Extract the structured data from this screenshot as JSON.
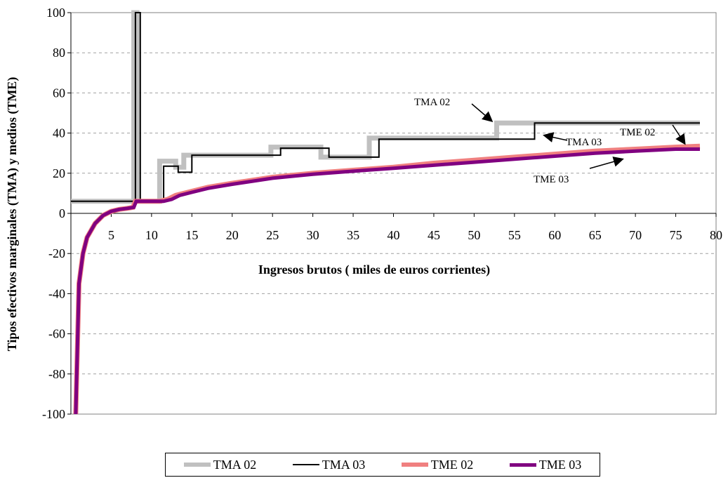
{
  "chart_data": {
    "type": "line",
    "xlabel": "Ingresos brutos ( miles de euros corrientes)",
    "ylabel": "Tipos efectivos marginales (TMA) y medios (TME)",
    "xlim": [
      0,
      80
    ],
    "ylim": [
      -100,
      100
    ],
    "x_ticks": [
      5,
      10,
      15,
      20,
      25,
      30,
      35,
      40,
      45,
      50,
      55,
      60,
      65,
      70,
      75,
      80
    ],
    "y_ticks": [
      100,
      80,
      60,
      40,
      20,
      0,
      -20,
      -40,
      -60,
      -80,
      -100
    ],
    "grid": "horizontal dashed",
    "legend_position": "bottom",
    "series": [
      {
        "name": "TMA 02",
        "color": "#c0c0c0",
        "width": 7,
        "points": [
          [
            0,
            6
          ],
          [
            7.8,
            6
          ],
          [
            7.8,
            100
          ],
          [
            8.2,
            100
          ],
          [
            8.2,
            6
          ],
          [
            11,
            6
          ],
          [
            11,
            26
          ],
          [
            13,
            26
          ],
          [
            13,
            23
          ],
          [
            14,
            23
          ],
          [
            14,
            29
          ],
          [
            24.8,
            29
          ],
          [
            24.8,
            33
          ],
          [
            31,
            33
          ],
          [
            31,
            28
          ],
          [
            37,
            28
          ],
          [
            37,
            37.5
          ],
          [
            52.8,
            37.5
          ],
          [
            52.8,
            45
          ],
          [
            78,
            45
          ]
        ]
      },
      {
        "name": "TMA 03",
        "color": "#000000",
        "width": 2,
        "points": [
          [
            0,
            6
          ],
          [
            8,
            6
          ],
          [
            8,
            100
          ],
          [
            8.6,
            100
          ],
          [
            8.6,
            6
          ],
          [
            11.5,
            6
          ],
          [
            11.5,
            23.5
          ],
          [
            13.3,
            23.5
          ],
          [
            13.3,
            20.5
          ],
          [
            15,
            20.5
          ],
          [
            15,
            29
          ],
          [
            26,
            29
          ],
          [
            26,
            32.5
          ],
          [
            32,
            32.5
          ],
          [
            32,
            28
          ],
          [
            38.2,
            28
          ],
          [
            38.2,
            37
          ],
          [
            57.5,
            37
          ],
          [
            57.5,
            45
          ],
          [
            78,
            45
          ]
        ]
      },
      {
        "name": "TME 02",
        "color": "#f08080",
        "width": 7,
        "points": [
          [
            0.6,
            -100
          ],
          [
            1,
            -35
          ],
          [
            1.5,
            -20
          ],
          [
            2,
            -12
          ],
          [
            3,
            -5
          ],
          [
            4,
            -1
          ],
          [
            5,
            1
          ],
          [
            6,
            2
          ],
          [
            7,
            2.5
          ],
          [
            7.7,
            3
          ],
          [
            8,
            6
          ],
          [
            11,
            6
          ],
          [
            12,
            7
          ],
          [
            13,
            9
          ],
          [
            15,
            11
          ],
          [
            17,
            13
          ],
          [
            20,
            15
          ],
          [
            25,
            18
          ],
          [
            30,
            20
          ],
          [
            35,
            21.5
          ],
          [
            40,
            23
          ],
          [
            45,
            25
          ],
          [
            50,
            26.5
          ],
          [
            55,
            28
          ],
          [
            60,
            29.5
          ],
          [
            65,
            31
          ],
          [
            70,
            32
          ],
          [
            75,
            33
          ],
          [
            78,
            33.5
          ]
        ]
      },
      {
        "name": "TME 03",
        "color": "#800080",
        "width": 5,
        "points": [
          [
            0.6,
            -100
          ],
          [
            1,
            -35
          ],
          [
            1.5,
            -20
          ],
          [
            2,
            -12
          ],
          [
            3,
            -5
          ],
          [
            4,
            -1
          ],
          [
            5,
            1
          ],
          [
            6,
            2
          ],
          [
            7,
            2.5
          ],
          [
            7.8,
            3
          ],
          [
            8.1,
            6
          ],
          [
            11.5,
            6
          ],
          [
            12.5,
            7
          ],
          [
            13.5,
            9
          ],
          [
            15,
            10.5
          ],
          [
            17,
            12.5
          ],
          [
            20,
            14.5
          ],
          [
            25,
            17.5
          ],
          [
            30,
            19.5
          ],
          [
            35,
            21
          ],
          [
            40,
            22.5
          ],
          [
            45,
            24
          ],
          [
            50,
            25.5
          ],
          [
            55,
            27
          ],
          [
            60,
            28.5
          ],
          [
            65,
            30
          ],
          [
            70,
            31
          ],
          [
            75,
            32
          ],
          [
            78,
            32
          ]
        ]
      }
    ],
    "annotations": [
      {
        "text": "TMA 02",
        "x": 45,
        "y": 54.5
      },
      {
        "text": "TMA 03",
        "x": 62,
        "y": 35.5
      },
      {
        "text": "TME 02",
        "x": 70,
        "y": 39.5
      },
      {
        "text": "TME 03",
        "x": 62,
        "y": 16
      }
    ]
  }
}
